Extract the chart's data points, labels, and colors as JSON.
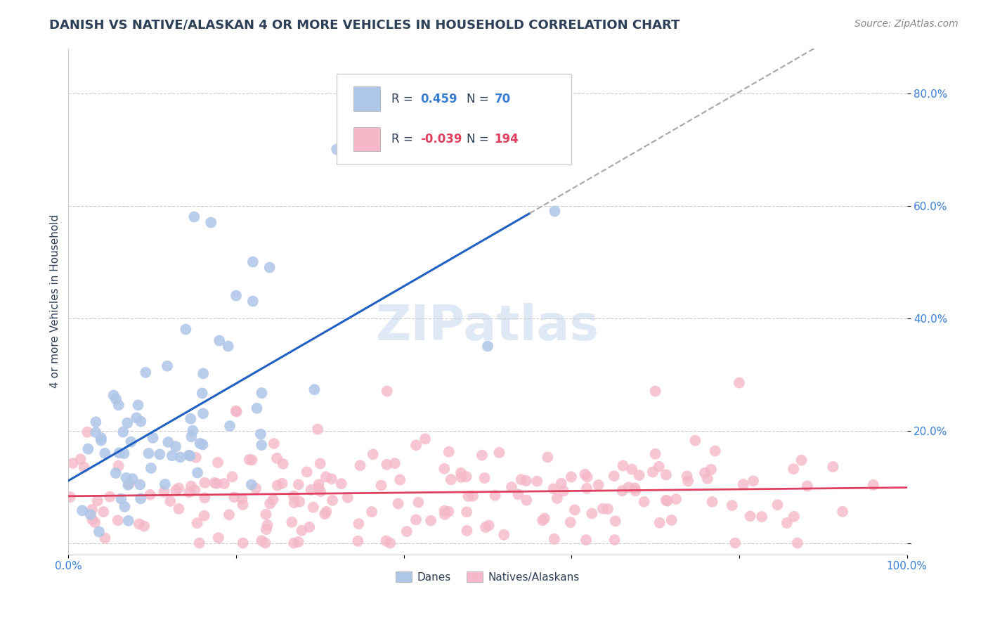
{
  "title": "DANISH VS NATIVE/ALASKAN 4 OR MORE VEHICLES IN HOUSEHOLD CORRELATION CHART",
  "source": "Source: ZipAtlas.com",
  "ylabel": "4 or more Vehicles in Household",
  "xlim": [
    0.0,
    1.0
  ],
  "ylim": [
    -0.02,
    0.88
  ],
  "xticks": [
    0.0,
    0.2,
    0.4,
    0.6,
    0.8,
    1.0
  ],
  "xticklabels": [
    "0.0%",
    "",
    "",
    "",
    "",
    "100.0%"
  ],
  "yticks": [
    0.0,
    0.2,
    0.4,
    0.6,
    0.8
  ],
  "yticklabels": [
    "",
    "20.0%",
    "40.0%",
    "60.0%",
    "80.0%"
  ],
  "legend_labels": [
    "Danes",
    "Natives/Alaskans"
  ],
  "blue_R": 0.459,
  "blue_N": 70,
  "pink_R": -0.039,
  "pink_N": 194,
  "blue_color": "#aec6e8",
  "pink_color": "#f4b8c8",
  "blue_line_color": "#2060c0",
  "pink_line_color": "#e04060",
  "dashed_line_color": "#aaaaaa",
  "watermark": "ZIPatlas",
  "background_color": "#ffffff",
  "title_color": "#2e4057",
  "tick_label_color": "#3a7fd5",
  "grid_color": "#cccccc",
  "title_fontsize": 13,
  "source_fontsize": 10,
  "seed": 42
}
